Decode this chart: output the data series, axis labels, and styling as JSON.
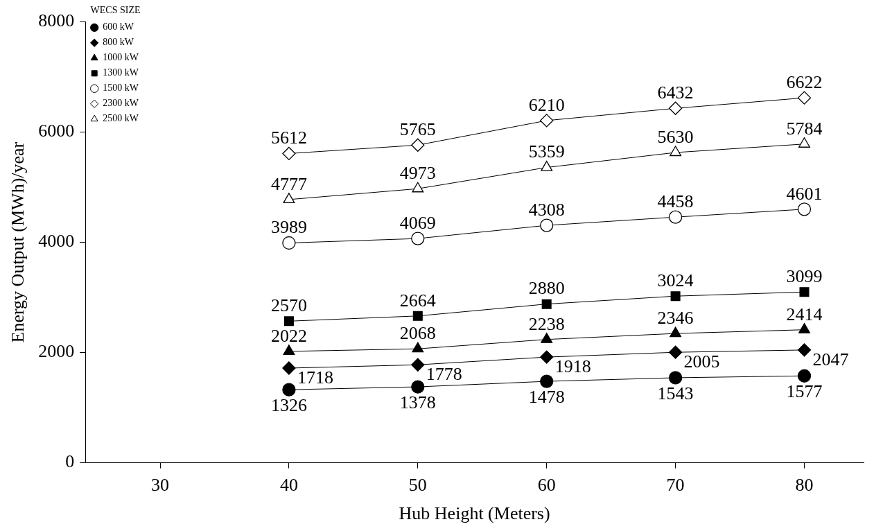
{
  "chart_data": {
    "type": "line",
    "xlabel": "Hub Height (Meters)",
    "ylabel": "Energy Output (MWh)/year",
    "legend_title": "WECS SIZE",
    "x": [
      40,
      50,
      60,
      70,
      80
    ],
    "xlim": [
      24.2,
      84.6
    ],
    "xticks": [
      30,
      40,
      50,
      60,
      70,
      80
    ],
    "ylim": [
      0,
      8000
    ],
    "yticks": [
      0,
      2000,
      4000,
      6000,
      8000
    ],
    "grid": false,
    "legend": "top left",
    "data_labels": true,
    "line_style": "solid",
    "series": [
      {
        "name": "600 kW",
        "color": "#000000",
        "marker": "circle",
        "values": [
          1326,
          1378,
          1478,
          1543,
          1577
        ]
      },
      {
        "name": "800 kW",
        "color": "#000000",
        "marker": "diamond",
        "values": [
          1718,
          1778,
          1918,
          2005,
          2047
        ]
      },
      {
        "name": "1000 kW",
        "color": "#000000",
        "marker": "triangle",
        "values": [
          2022,
          2068,
          2238,
          2346,
          2414
        ]
      },
      {
        "name": "1300 kW",
        "color": "#000000",
        "marker": "square",
        "values": [
          2570,
          2664,
          2880,
          3024,
          3099
        ]
      },
      {
        "name": "1500 kW",
        "color": "#000000",
        "colors": [
          "#ffffff",
          "#ffffff",
          "#ffffff",
          "#ffffff",
          "#ffffff"
        ],
        "marker": "circle",
        "values": [
          3989,
          4069,
          4308,
          4458,
          4601
        ]
      },
      {
        "name": "2300 kW",
        "color": "#000000",
        "colors": [
          "#ffffff",
          "#ffffff",
          "#ffffff",
          "#ffffff",
          "#ffffff"
        ],
        "marker": "diamond",
        "values": [
          5612,
          5765,
          6210,
          6432,
          6622
        ]
      },
      {
        "name": "2500 kW",
        "color": "#000000",
        "colors": [
          "#ffffff",
          "#ffffff",
          "#ffffff",
          "#ffffff",
          "#ffffff"
        ],
        "marker": "triangle",
        "values": [
          4777,
          4973,
          5359,
          5630,
          5784
        ]
      }
    ]
  }
}
